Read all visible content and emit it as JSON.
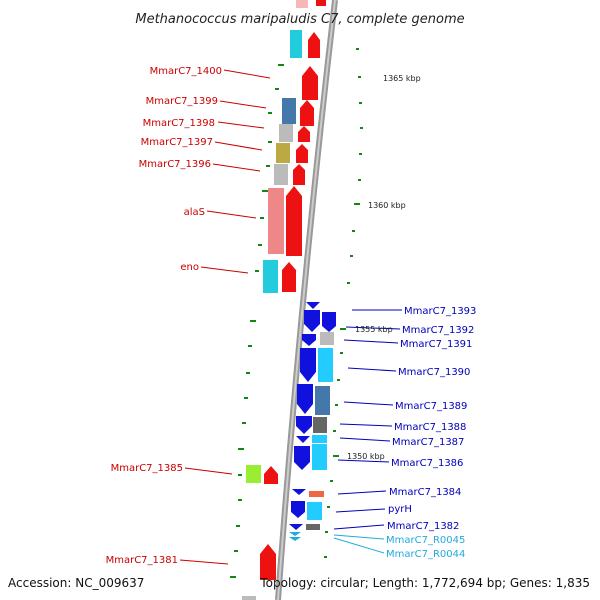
{
  "title": "Methanococcus maripaludis C7, complete genome",
  "footer": {
    "accession": "Accession: NC_009637",
    "info": "Topology: circular; Length: 1,772,694 bp; Genes: 1,835"
  },
  "ruler_labels": [
    "1365 kbp",
    "1360 kbp",
    "1355 kbp",
    "1350 kbp"
  ],
  "colors": {
    "reverse_label": "#cc0000",
    "forward_label": "#0000bb",
    "rna_label": "#22aadd",
    "backbone": "#888888",
    "tick": "#118811"
  },
  "genes_reverse": [
    "MmarC7_1400",
    "MmarC7_1399",
    "MmarC7_1398",
    "MmarC7_1397",
    "MmarC7_1396",
    "alaS",
    "eno",
    "MmarC7_1385",
    "MmarC7_1381"
  ],
  "genes_forward": [
    "MmarC7_1393",
    "MmarC7_1392",
    "MmarC7_1391",
    "MmarC7_1390",
    "MmarC7_1389",
    "MmarC7_1388",
    "MmarC7_1387",
    "MmarC7_1386",
    "MmarC7_1384",
    "pyrH",
    "MmarC7_1382"
  ],
  "genes_rna": [
    "MmarC7_R0045",
    "MmarC7_R0044"
  ]
}
